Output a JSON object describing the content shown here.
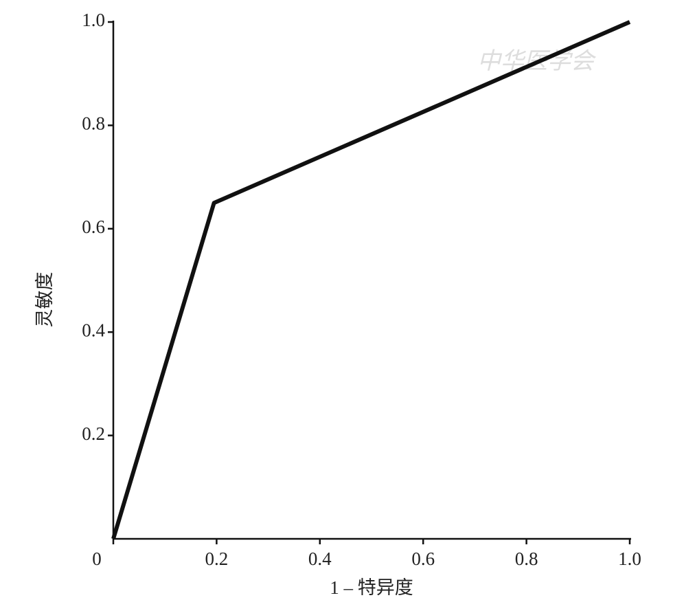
{
  "chart_data": {
    "type": "line",
    "x_label": "1 – 特异度",
    "y_label": "灵敏度",
    "watermark": "中华医学会",
    "x": [
      0,
      0.195,
      1
    ],
    "series": [
      {
        "color": "#111111",
        "values": [
          0,
          0.65,
          1
        ]
      }
    ],
    "xlim": [
      0,
      1
    ],
    "ylim": [
      0,
      1
    ],
    "xticks": [
      0,
      0.2,
      0.4,
      0.6,
      0.8,
      {
        "value": 1,
        "label": "1.0"
      }
    ],
    "yticks": [
      0.2,
      0.4,
      0.6,
      0.8,
      {
        "value": 1,
        "label": "1.0"
      }
    ],
    "grid": false
  }
}
